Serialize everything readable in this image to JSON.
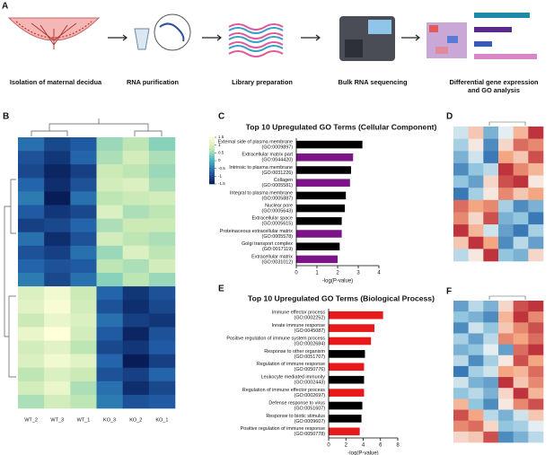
{
  "panels": [
    "A",
    "B",
    "C",
    "D",
    "E",
    "F"
  ],
  "workflow": [
    {
      "lines": [
        "Isolation of maternal decidua"
      ]
    },
    {
      "lines": [
        "RNA purification"
      ]
    },
    {
      "lines": [
        "Library preparation"
      ]
    },
    {
      "lines": [
        "Bulk RNA sequencing"
      ]
    },
    {
      "lines": [
        "Differential gene expression",
        "and GO analysis"
      ]
    }
  ],
  "chart_data": [
    {
      "type": "bar",
      "orientation": "horizontal",
      "title": "Top 10 Upregulated GO Terms (Cellular Component)",
      "categories": [
        [
          "External side of plasma membrane",
          "(GO:0009897)"
        ],
        [
          "Extracellular matrix part",
          "(GO:0044420)"
        ],
        [
          "Intrinsic to plasma membrane",
          "(GO:0031226)"
        ],
        [
          "Collagen",
          "(GO:0005581)"
        ],
        [
          "Integral to plasma membrane",
          "(GO:0005887)"
        ],
        [
          "Nuclear pore",
          "(GO:0005643)"
        ],
        [
          "Extracellular space",
          "(GO:0005615)"
        ],
        [
          "Proteinaceous extracellular matrix",
          "(GO:0005578)"
        ],
        [
          "Golgi transport complex",
          "(GO:0017119)"
        ],
        [
          "Extracellular matrix",
          "(GO:0031012)"
        ]
      ],
      "values": [
        3.2,
        2.75,
        2.65,
        2.6,
        2.4,
        2.35,
        2.2,
        2.2,
        2.1,
        2.0
      ],
      "colors": [
        "#000000",
        "#7a1487",
        "#000000",
        "#7a1487",
        "#000000",
        "#000000",
        "#000000",
        "#7a1487",
        "#000000",
        "#7a1487"
      ],
      "xlabel": "-log(P-value)",
      "xlim": [
        0,
        4
      ],
      "xticks": [
        0,
        1,
        2,
        3,
        4
      ]
    },
    {
      "type": "bar",
      "orientation": "horizontal",
      "title": "Top 10 Upregulated GO Terms (Biological Process)",
      "categories": [
        [
          "Immune effector process",
          "(GO:0002252)"
        ],
        [
          "Innate immune response",
          "(GO:0045087)"
        ],
        [
          "Positive regulation of immune system process",
          "(GO:0002684)"
        ],
        [
          "Response to other organism",
          "(GO:0051707)"
        ],
        [
          "Regulation of immune response",
          "(GO:0050776)"
        ],
        [
          "Leukocyte mediated immunity",
          "(GO:0002443)"
        ],
        [
          "Regulation of immune effector process",
          "(GO:0002697)"
        ],
        [
          "Defense response to virus",
          "(GO:0051607)"
        ],
        [
          "Response to biotic stimulus",
          "(GO:0009607)"
        ],
        [
          "Positive regulation of immune response",
          "(GO:0050778)"
        ]
      ],
      "values": [
        6.3,
        5.3,
        4.9,
        4.2,
        4.1,
        4.1,
        4.1,
        3.9,
        3.8,
        3.6
      ],
      "colors": [
        "#e8191b",
        "#e8191b",
        "#e8191b",
        "#000000",
        "#e8191b",
        "#000000",
        "#e8191b",
        "#000000",
        "#000000",
        "#e8191b"
      ],
      "xlabel": "-log(P-value)",
      "xlim": [
        0,
        8
      ],
      "xticks": [
        0,
        2,
        4,
        6,
        8
      ]
    },
    {
      "type": "heatmap",
      "columns": [
        "WT_2",
        "WT_3",
        "WT_1",
        "KO_3",
        "KO_2",
        "KO_1"
      ],
      "colormap": [
        "#081d58",
        "#225ea8",
        "#41b6c4",
        "#c7e9b4",
        "#ffffd9"
      ],
      "zlim": [
        -1.5,
        1.5
      ],
      "colorbar_ticks": [
        1.5,
        1,
        0.5,
        0,
        -0.5,
        -1,
        -1.5
      ],
      "values": [
        [
          -0.6,
          -1.0,
          -0.8,
          0.5,
          0.7,
          0.4
        ],
        [
          -0.9,
          -1.2,
          -0.7,
          0.6,
          0.9,
          0.6
        ],
        [
          -1.0,
          -1.4,
          -1.1,
          0.8,
          0.7,
          0.5
        ],
        [
          -0.7,
          -1.3,
          -0.9,
          0.9,
          1.0,
          0.6
        ],
        [
          -0.5,
          -1.5,
          -0.6,
          0.7,
          0.8,
          0.9
        ],
        [
          -0.8,
          -1.2,
          -1.0,
          1.0,
          0.6,
          0.7
        ],
        [
          -1.1,
          -1.0,
          -0.7,
          0.6,
          0.8,
          0.8
        ],
        [
          -0.6,
          -1.3,
          -0.9,
          0.9,
          0.7,
          0.6
        ],
        [
          -0.9,
          -1.1,
          -0.6,
          0.5,
          1.0,
          0.7
        ],
        [
          -0.7,
          -0.9,
          -0.8,
          0.7,
          0.6,
          0.9
        ],
        [
          -0.5,
          -1.0,
          -0.6,
          0.4,
          0.7,
          0.5
        ],
        [
          1.0,
          1.3,
          0.8,
          -0.7,
          -1.2,
          -0.9
        ],
        [
          1.1,
          1.4,
          0.9,
          -0.9,
          -1.3,
          -1.0
        ],
        [
          0.8,
          1.2,
          1.0,
          -0.6,
          -1.1,
          -1.2
        ],
        [
          1.2,
          1.5,
          0.9,
          -0.8,
          -1.4,
          -0.9
        ],
        [
          0.9,
          1.1,
          0.7,
          -1.0,
          -1.2,
          -0.8
        ],
        [
          1.0,
          1.3,
          1.1,
          -0.7,
          -1.5,
          -1.1
        ],
        [
          0.7,
          1.0,
          0.8,
          -0.9,
          -1.1,
          -0.7
        ],
        [
          0.9,
          1.2,
          0.6,
          -0.6,
          -1.3,
          -1.0
        ],
        [
          0.6,
          0.9,
          0.7,
          -0.5,
          -0.9,
          -0.8
        ]
      ]
    },
    {
      "type": "heatmap",
      "colormap": [
        "#2166ac",
        "#92c5de",
        "#f7f7f7",
        "#f4a582",
        "#b2182b"
      ],
      "zlim": [
        -1,
        1
      ],
      "values": [
        [
          -0.2,
          0.3,
          -0.6,
          -0.1,
          0.4,
          0.9
        ],
        [
          -0.4,
          0.1,
          -0.8,
          0.2,
          0.7,
          0.6
        ],
        [
          -0.6,
          -0.2,
          -0.9,
          0.5,
          0.3,
          0.8
        ],
        [
          -0.8,
          -0.5,
          -0.3,
          0.9,
          0.6,
          0.4
        ],
        [
          -0.5,
          -0.7,
          0.2,
          0.8,
          0.9,
          0.1
        ],
        [
          -0.9,
          -0.4,
          0.1,
          0.6,
          0.3,
          0.5
        ],
        [
          0.7,
          0.5,
          0.6,
          -0.4,
          -0.8,
          -0.6
        ],
        [
          0.6,
          0.2,
          0.8,
          -0.6,
          -0.5,
          -0.9
        ],
        [
          0.9,
          0.4,
          -0.2,
          -0.7,
          -0.9,
          -0.4
        ],
        [
          0.3,
          0.9,
          0.5,
          -0.8,
          -0.3,
          -0.7
        ],
        [
          -0.3,
          0.1,
          0.9,
          -0.5,
          -0.6,
          0.2
        ]
      ]
    },
    {
      "type": "heatmap",
      "colormap": [
        "#2166ac",
        "#92c5de",
        "#f7f7f7",
        "#f4a582",
        "#b2182b"
      ],
      "zlim": [
        -1,
        1
      ],
      "values": [
        [
          -0.7,
          -0.3,
          -0.6,
          0.2,
          0.8,
          0.9
        ],
        [
          -0.5,
          -0.6,
          -0.8,
          0.4,
          0.9,
          0.6
        ],
        [
          -0.8,
          -0.2,
          -0.5,
          0.3,
          0.6,
          0.8
        ],
        [
          -0.4,
          -0.7,
          -0.3,
          0.6,
          0.5,
          0.7
        ],
        [
          -0.6,
          -0.5,
          -0.1,
          -0.7,
          0.7,
          0.9
        ],
        [
          -0.3,
          -0.8,
          -0.4,
          0.1,
          0.8,
          0.5
        ],
        [
          -0.9,
          -0.4,
          -0.2,
          0.5,
          0.4,
          0.7
        ],
        [
          -0.2,
          -0.6,
          -0.7,
          0.9,
          0.3,
          0.6
        ],
        [
          -0.5,
          -0.3,
          -0.6,
          0.2,
          0.9,
          0.4
        ],
        [
          0.4,
          -0.5,
          -0.8,
          0.1,
          0.6,
          0.8
        ],
        [
          0.8,
          0.5,
          -0.3,
          -0.6,
          -0.2,
          0.3
        ],
        [
          0.6,
          0.7,
          0.2,
          -0.5,
          -0.4,
          -0.1
        ],
        [
          0.2,
          0.3,
          0.8,
          -0.8,
          -0.6,
          -0.3
        ]
      ]
    }
  ]
}
